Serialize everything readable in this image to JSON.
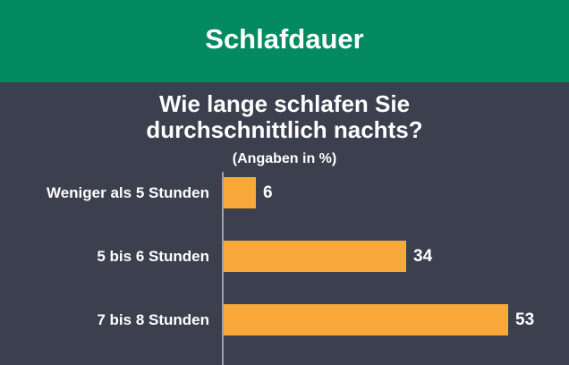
{
  "header": {
    "title": "Schlafdauer"
  },
  "chart_data": {
    "type": "bar",
    "orientation": "horizontal",
    "title_lines": [
      "Wie lange schlafen Sie",
      "durchschnittlich nachts?"
    ],
    "unit_note": "(Angaben in %)",
    "categories": [
      "Weniger als 5 Stunden",
      "5 bis 6 Stunden",
      "7 bis 8 Stunden"
    ],
    "values": [
      6,
      34,
      53
    ],
    "value_labels": [
      "6",
      "34",
      "53"
    ],
    "xlim": [
      0,
      53
    ],
    "grid": false,
    "bar_color": "#f8a93a"
  },
  "colors": {
    "header_bg": "#038a5e",
    "background": "#3b3f4e",
    "text": "#ffffff",
    "bar": "#f8a93a"
  }
}
